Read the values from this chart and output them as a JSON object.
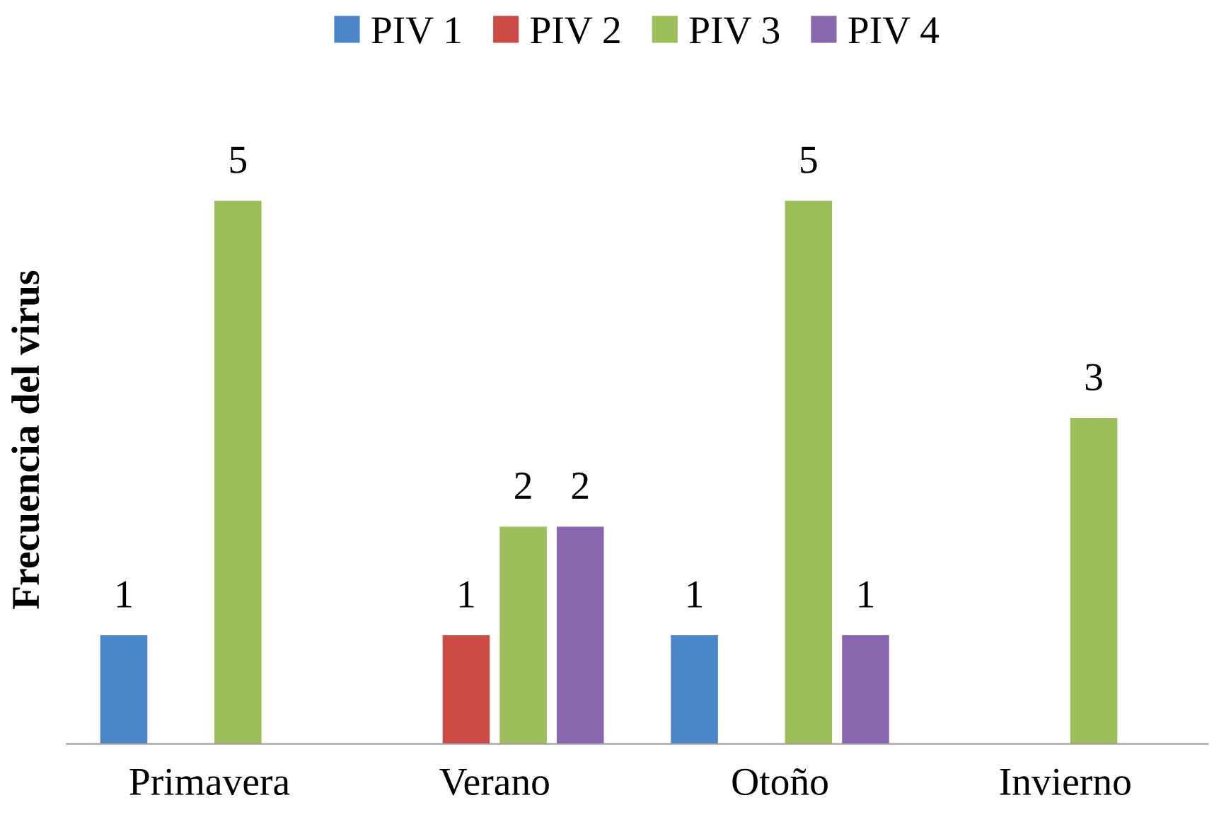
{
  "chart_data": {
    "type": "bar",
    "ylabel": "Frecuencia del virus",
    "categories": [
      "Primavera",
      "Verano",
      "Otoño",
      "Invierno"
    ],
    "series": [
      {
        "name": "PIV 1",
        "color": "#4a86c8",
        "values": [
          1,
          null,
          1,
          null
        ]
      },
      {
        "name": "PIV 2",
        "color": "#cc4b45",
        "values": [
          null,
          1,
          null,
          null
        ]
      },
      {
        "name": "PIV 3",
        "color": "#9cbf59",
        "values": [
          5,
          2,
          5,
          3
        ]
      },
      {
        "name": "PIV 4",
        "color": "#8867ae",
        "values": [
          null,
          2,
          1,
          null
        ]
      }
    ],
    "data_labels": true,
    "legend": "top",
    "grid": false
  }
}
